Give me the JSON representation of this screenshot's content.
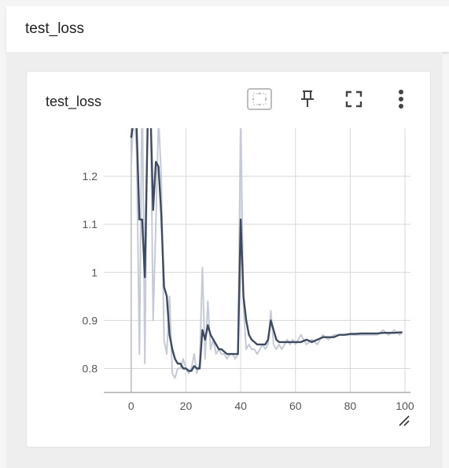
{
  "header": {
    "title": "test_loss"
  },
  "card": {
    "title": "test_loss",
    "tools": [
      {
        "name": "fit-domain-icon"
      },
      {
        "name": "pin-icon"
      },
      {
        "name": "fullscreen-icon"
      },
      {
        "name": "more-vert-icon"
      }
    ]
  },
  "chart_data": {
    "type": "line",
    "title": "",
    "xlabel": "",
    "ylabel": "",
    "xlim": [
      -10,
      102
    ],
    "ylim": [
      0.75,
      1.3
    ],
    "xticks": [
      0,
      20,
      40,
      60,
      80,
      100
    ],
    "yticks": [
      0.8,
      0.9,
      1,
      1.1,
      1.2
    ],
    "ytick_labels": [
      "0.8",
      "0.9",
      "1",
      "1.1",
      "1.2"
    ],
    "grid": true,
    "legend": "none",
    "colors": {
      "smoothed": "#3d4a60",
      "raw": "#c5cbd6"
    },
    "series": [
      {
        "role": "raw",
        "x": [
          0,
          1,
          2,
          3,
          4,
          5,
          6,
          7,
          8,
          9,
          10,
          11,
          12,
          13,
          14,
          15,
          16,
          17,
          18,
          19,
          20,
          21,
          22,
          23,
          24,
          25,
          26,
          27,
          28,
          29,
          30,
          31,
          32,
          33,
          34,
          35,
          36,
          37,
          38,
          39,
          40,
          41,
          42,
          43,
          44,
          45,
          46,
          47,
          48,
          49,
          50,
          51,
          52,
          53,
          54,
          55,
          56,
          57,
          58,
          59,
          60,
          62,
          64,
          66,
          68,
          70,
          72,
          74,
          76,
          78,
          80,
          82,
          84,
          86,
          88,
          90,
          92,
          94,
          96,
          98,
          99
        ],
        "y": [
          1.22,
          1.35,
          1.25,
          0.83,
          1.4,
          0.81,
          1.35,
          1.4,
          0.9,
          1.1,
          1.32,
          1.2,
          0.86,
          0.83,
          0.95,
          0.79,
          0.78,
          0.8,
          0.8,
          0.82,
          0.8,
          0.79,
          0.8,
          0.83,
          0.79,
          0.81,
          1.01,
          0.82,
          0.94,
          0.84,
          0.86,
          0.83,
          0.84,
          0.83,
          0.83,
          0.82,
          0.83,
          0.83,
          0.82,
          0.83,
          1.33,
          0.93,
          0.84,
          0.85,
          0.84,
          0.84,
          0.83,
          0.84,
          0.85,
          0.84,
          0.85,
          0.92,
          0.85,
          0.84,
          0.85,
          0.84,
          0.85,
          0.86,
          0.85,
          0.86,
          0.85,
          0.87,
          0.85,
          0.86,
          0.85,
          0.87,
          0.86,
          0.87,
          0.87,
          0.87,
          0.87,
          0.87,
          0.87,
          0.87,
          0.87,
          0.87,
          0.88,
          0.87,
          0.88,
          0.87,
          0.875
        ]
      },
      {
        "role": "smoothed",
        "x": [
          0,
          1,
          2,
          3,
          4,
          5,
          6,
          7,
          8,
          9,
          10,
          11,
          12,
          13,
          14,
          15,
          16,
          17,
          18,
          19,
          20,
          21,
          22,
          23,
          24,
          25,
          26,
          27,
          28,
          29,
          30,
          31,
          32,
          33,
          34,
          35,
          36,
          37,
          38,
          39,
          40,
          41,
          42,
          43,
          44,
          45,
          46,
          47,
          48,
          49,
          50,
          51,
          52,
          53,
          54,
          55,
          56,
          57,
          58,
          59,
          60,
          62,
          64,
          66,
          68,
          70,
          72,
          74,
          76,
          78,
          80,
          82,
          84,
          86,
          88,
          90,
          92,
          94,
          96,
          98,
          99
        ],
        "y": [
          1.28,
          1.32,
          1.3,
          1.11,
          1.11,
          0.99,
          1.3,
          1.35,
          1.13,
          1.23,
          1.22,
          1.12,
          0.97,
          0.95,
          0.87,
          0.84,
          0.82,
          0.81,
          0.81,
          0.8,
          0.8,
          0.795,
          0.795,
          0.805,
          0.8,
          0.8,
          0.88,
          0.86,
          0.89,
          0.87,
          0.86,
          0.85,
          0.84,
          0.84,
          0.835,
          0.83,
          0.83,
          0.83,
          0.83,
          0.83,
          1.11,
          0.95,
          0.9,
          0.87,
          0.86,
          0.855,
          0.85,
          0.85,
          0.85,
          0.85,
          0.86,
          0.9,
          0.88,
          0.86,
          0.855,
          0.855,
          0.855,
          0.855,
          0.855,
          0.855,
          0.855,
          0.855,
          0.86,
          0.855,
          0.86,
          0.865,
          0.865,
          0.865,
          0.87,
          0.87,
          0.872,
          0.872,
          0.873,
          0.873,
          0.873,
          0.873,
          0.874,
          0.874,
          0.874,
          0.875,
          0.875
        ]
      }
    ]
  }
}
